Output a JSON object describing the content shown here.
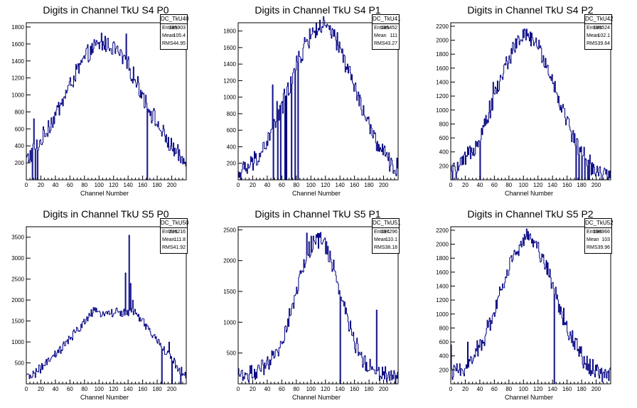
{
  "chart_data": [
    {
      "type": "bar",
      "title": "Digits in Channel TkU S4 P0",
      "xlabel": "Channel Number",
      "stats": {
        "name": "DC_TkU40",
        "entries_label": "Entries",
        "entries": "185903",
        "mean_label": "Mean",
        "mean": "105.4",
        "rms_label": "RMS",
        "rms": "44.95"
      },
      "xlim": [
        0,
        220
      ],
      "ylim": [
        0,
        1850
      ],
      "xticks": [
        0,
        20,
        40,
        60,
        80,
        100,
        120,
        140,
        160,
        180,
        200
      ],
      "yticks": [
        200,
        400,
        600,
        800,
        1000,
        1200,
        1400,
        1600,
        1800
      ],
      "shape": {
        "kind": "bell",
        "mean": 107,
        "sigma": 55,
        "peak": 1600,
        "base": 0
      },
      "spikes": [
        [
          10,
          720
        ],
        [
          30,
          700
        ],
        [
          103,
          1730
        ],
        [
          137,
          1720
        ],
        [
          166,
          0
        ]
      ],
      "dips": [
        8,
        12,
        15,
        166
      ]
    },
    {
      "type": "bar",
      "title": "Digits in Channel TkU S4 P1",
      "xlabel": "Channel Number",
      "stats": {
        "name": "DC_TkU41",
        "entries_label": "Entries",
        "entries": "185452",
        "mean_label": "Mean",
        "mean": "111",
        "rms_label": "RMS",
        "rms": "43.27"
      },
      "xlim": [
        0,
        220
      ],
      "ylim": [
        0,
        1900
      ],
      "xticks": [
        0,
        20,
        40,
        60,
        80,
        100,
        120,
        140,
        160,
        180,
        200
      ],
      "yticks": [
        200,
        400,
        600,
        800,
        1000,
        1200,
        1400,
        1600,
        1800
      ],
      "shape": {
        "kind": "bell",
        "mean": 115,
        "sigma": 45,
        "peak": 1850,
        "base": 0
      },
      "spikes": [
        [
          47,
          1150
        ],
        [
          53,
          950
        ],
        [
          63,
          1100
        ],
        [
          72,
          1250
        ],
        [
          77,
          1350
        ]
      ],
      "dips": [
        48,
        54,
        58,
        64,
        66,
        73,
        78,
        82
      ]
    },
    {
      "type": "bar",
      "title": "Digits in Channel TkU S4 P2",
      "xlabel": "Channel Number",
      "stats": {
        "name": "DC_TkU42",
        "entries_label": "Entries",
        "entries": "199524",
        "mean_label": "Mean",
        "mean": "102.1",
        "rms_label": "RMS",
        "rms": "39.64"
      },
      "xlim": [
        0,
        220
      ],
      "ylim": [
        0,
        2250
      ],
      "xticks": [
        0,
        20,
        40,
        60,
        80,
        100,
        120,
        140,
        160,
        180,
        200
      ],
      "yticks": [
        200,
        400,
        600,
        800,
        1000,
        1200,
        1400,
        1600,
        1800,
        2000,
        2200
      ],
      "shape": {
        "kind": "bell",
        "mean": 104,
        "sigma": 42,
        "peak": 2050,
        "base": 0
      },
      "spikes": [
        [
          58,
          1400
        ],
        [
          93,
          2050
        ],
        [
          109,
          2120
        ],
        [
          172,
          800
        ]
      ],
      "dips": [
        40,
        172,
        176,
        180,
        184,
        188,
        190,
        216
      ]
    },
    {
      "type": "bar",
      "title": "Digits in Channel TkU S5 P0",
      "xlabel": "Channel Number",
      "stats": {
        "name": "DC_TkU50",
        "entries_label": "Entries",
        "entries": "216216",
        "mean_label": "Mean",
        "mean": "111.8",
        "rms_label": "RMS",
        "rms": "41.92"
      },
      "xlim": [
        0,
        220
      ],
      "ylim": [
        0,
        3750
      ],
      "xticks": [
        0,
        20,
        40,
        60,
        80,
        100,
        120,
        140,
        160,
        180,
        200
      ],
      "yticks": [
        500,
        1000,
        1500,
        2000,
        2500,
        3000,
        3500
      ],
      "shape": {
        "kind": "plateau",
        "rise_end": 90,
        "fall_start": 150,
        "fall_end": 220,
        "peak": 1700,
        "base": 150
      },
      "spikes": [
        [
          136,
          2650
        ],
        [
          141,
          3550
        ],
        [
          143,
          2400
        ],
        [
          146,
          2000
        ],
        [
          188,
          800
        ],
        [
          196,
          1000
        ]
      ],
      "dips": [
        186,
        200,
        212
      ]
    },
    {
      "type": "bar",
      "title": "Digits in Channel TkU S5 P1",
      "xlabel": "Channel Number",
      "stats": {
        "name": "DC_TkU51",
        "entries_label": "Entries",
        "entries": "197296",
        "mean_label": "Mean",
        "mean": "110.1",
        "rms_label": "RMS",
        "rms": "38.18"
      },
      "xlim": [
        0,
        220
      ],
      "ylim": [
        0,
        2550
      ],
      "xticks": [
        0,
        20,
        40,
        60,
        80,
        100,
        120,
        140,
        160,
        180,
        200
      ],
      "yticks": [
        500,
        1000,
        1500,
        2000,
        2500
      ],
      "shape": {
        "kind": "bell",
        "mean": 110,
        "sigma": 30,
        "peak": 2350,
        "base": 150
      },
      "spikes": [
        [
          94,
          2450
        ],
        [
          100,
          2400
        ],
        [
          190,
          1200
        ],
        [
          200,
          200
        ]
      ],
      "dips": [
        140
      ]
    },
    {
      "type": "bar",
      "title": "Digits in Channel TkU S5 P2",
      "xlabel": "Channel Number",
      "stats": {
        "name": "DC_TkU52",
        "entries_label": "Entries",
        "entries": "198966",
        "mean_label": "Mean",
        "mean": "103",
        "rms_label": "RMS",
        "rms": "39.96"
      },
      "xlim": [
        0,
        220
      ],
      "ylim": [
        0,
        2250
      ],
      "xticks": [
        0,
        20,
        40,
        60,
        80,
        100,
        120,
        140,
        160,
        180,
        200
      ],
      "yticks": [
        200,
        400,
        600,
        800,
        1000,
        1200,
        1400,
        1600,
        1800,
        2000,
        2200
      ],
      "shape": {
        "kind": "bell",
        "mean": 106,
        "sigma": 38,
        "peak": 2080,
        "base": 100
      },
      "spikes": [
        [
          0,
          560
        ],
        [
          23,
          600
        ],
        [
          44,
          580
        ],
        [
          109,
          2150
        ]
      ],
      "dips": [
        142
      ]
    }
  ],
  "colors": {
    "hist": "#000080",
    "axis": "#000000",
    "background": "#ffffff"
  }
}
